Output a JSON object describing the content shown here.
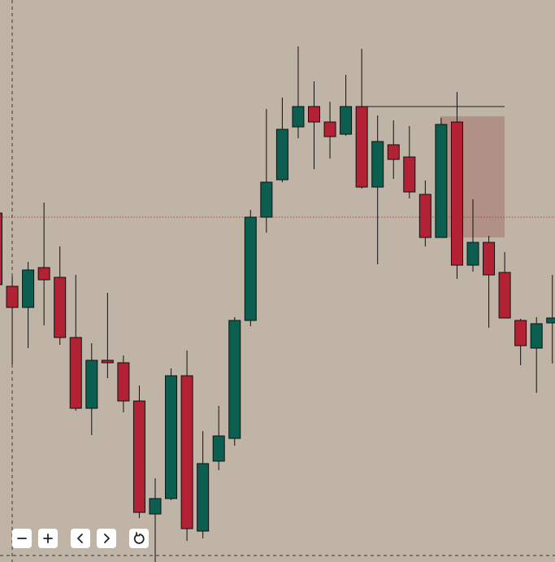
{
  "chart_data": {
    "type": "candlestick",
    "open": [
      429,
      339,
      313,
      362,
      350,
      276,
      189,
      248,
      245,
      198,
      59,
      78,
      229,
      38,
      124,
      152,
      297,
      424,
      470,
      535,
      560,
      541,
      526,
      560,
      461,
      513,
      498,
      452,
      399,
      541,
      365,
      393,
      356,
      297,
      263,
      294
    ],
    "high": [
      429,
      351,
      369,
      442,
      388,
      353,
      269,
      331,
      254,
      217,
      103,
      238,
      260,
      161,
      192,
      301,
      433,
      557,
      571,
      634,
      591,
      566,
      599,
      631,
      549,
      543,
      536,
      469,
      546,
      578,
      446,
      401,
      381,
      299,
      301,
      353
    ],
    "low": [
      341,
      243,
      263,
      291,
      267,
      186,
      156,
      226,
      184,
      54,
      0,
      76,
      26,
      29,
      113,
      143,
      290,
      405,
      467,
      521,
      483,
      496,
      524,
      459,
      366,
      471,
      447,
      388,
      399,
      348,
      357,
      288,
      300,
      242,
      208,
      244
    ],
    "close": [
      341,
      313,
      359,
      347,
      276,
      189,
      248,
      245,
      198,
      61,
      78,
      229,
      41,
      121,
      155,
      297,
      424,
      467,
      532,
      560,
      541,
      523,
      560,
      461,
      517,
      495,
      455,
      399,
      538,
      365,
      393,
      353,
      300,
      266,
      293,
      300
    ],
    "up_color": "#0b5e50",
    "down_color": "#b22234",
    "ylim": [
      0,
      691
    ],
    "resistance": 560,
    "zone": [
      399,
      548
    ],
    "current_price": 424
  }
}
